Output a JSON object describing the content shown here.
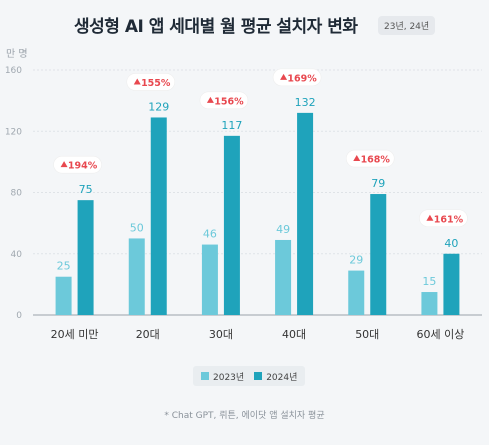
{
  "header": {
    "title": "생성형 AI 앱 세대별 월 평균 설치자 변화",
    "period": "23년, 24년"
  },
  "unit_label": "만 명",
  "footnote": "* Chat GPT, 뤼튼, 에이닷 앱 설치자 평균",
  "colors": {
    "series_2023": "#6cc9da",
    "series_2024": "#1fa3bb",
    "growth": "#e8484f"
  },
  "chart_data": {
    "type": "bar",
    "categories": [
      "20세 미만",
      "20대",
      "30대",
      "40대",
      "50대",
      "60세 이상"
    ],
    "series": [
      {
        "name": "2023년",
        "values": [
          25,
          50,
          46,
          49,
          29,
          15
        ]
      },
      {
        "name": "2024년",
        "values": [
          75,
          129,
          117,
          132,
          79,
          40
        ]
      }
    ],
    "growth_labels": [
      "194%",
      "155%",
      "156%",
      "169%",
      "168%",
      "161%"
    ],
    "y_ticks": [
      0,
      40,
      80,
      120,
      160
    ],
    "ylim": [
      0,
      160
    ],
    "grid": true,
    "legend": "bottom"
  }
}
